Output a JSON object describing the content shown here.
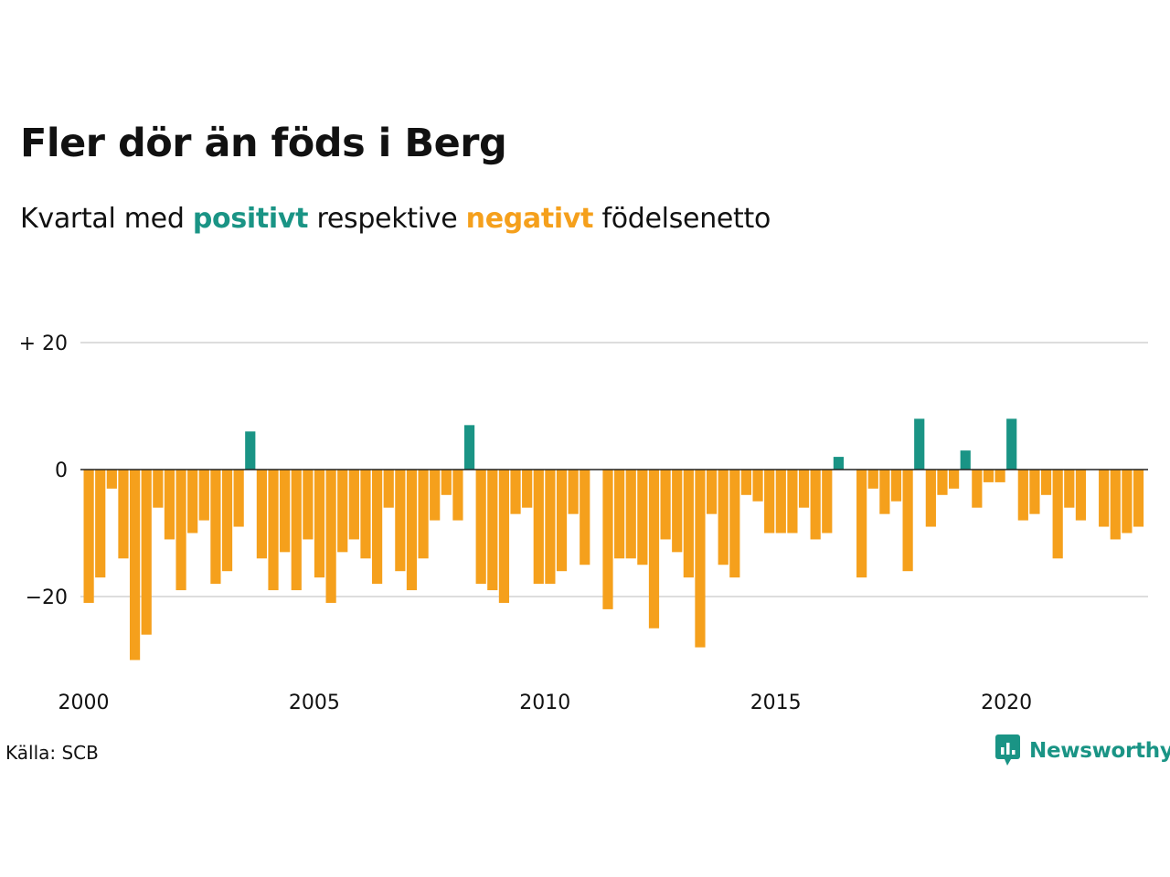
{
  "title": "Fler dör än föds i Berg",
  "subtitle": {
    "prefix": "Kvartal med",
    "positive": "positivt",
    "middle": "respektive",
    "negative": "negativt",
    "suffix": "födelsenetto"
  },
  "source": "Källa: SCB",
  "logo": {
    "text": "Newsworthy",
    "icon": "newsworthy-chart-icon"
  },
  "colors": {
    "positive": "#1a9485",
    "negative": "#f5a01c",
    "grid": "#dddddd",
    "zero": "#222222"
  },
  "chart_data": {
    "type": "bar",
    "x_start": "2000 Q1",
    "quarters_per_year": 4,
    "values": [
      -21,
      -17,
      -3,
      -14,
      -30,
      -26,
      -6,
      -11,
      -19,
      -10,
      -8,
      -18,
      -16,
      -9,
      6,
      -14,
      -19,
      -13,
      -19,
      -11,
      -17,
      -21,
      -13,
      -11,
      -14,
      -18,
      -6,
      -16,
      -19,
      -14,
      -8,
      -4,
      -8,
      7,
      -18,
      -19,
      -21,
      -7,
      -6,
      -18,
      -18,
      -16,
      -7,
      -15,
      null,
      -22,
      -14,
      -14,
      -15,
      -25,
      -11,
      -13,
      -17,
      -28,
      -7,
      -15,
      -17,
      -4,
      -5,
      -10,
      -10,
      -10,
      -6,
      -11,
      -10,
      2,
      null,
      -17,
      -3,
      -7,
      -5,
      -16,
      8,
      -9,
      -4,
      -3,
      3,
      -6,
      -2,
      -2,
      8,
      -8,
      -7,
      -4,
      -14,
      -6,
      -8,
      null,
      -9,
      -11,
      -10,
      -9
    ],
    "x_ticks": [
      "2000",
      "2005",
      "2010",
      "2015",
      "2020"
    ],
    "y_ticks": [
      {
        "value": 20,
        "label": "+ 20"
      },
      {
        "value": 0,
        "label": "0"
      },
      {
        "value": -20,
        "label": "−20"
      }
    ],
    "ylim": [
      -32,
      20
    ],
    "grid": true,
    "legend": "none"
  }
}
